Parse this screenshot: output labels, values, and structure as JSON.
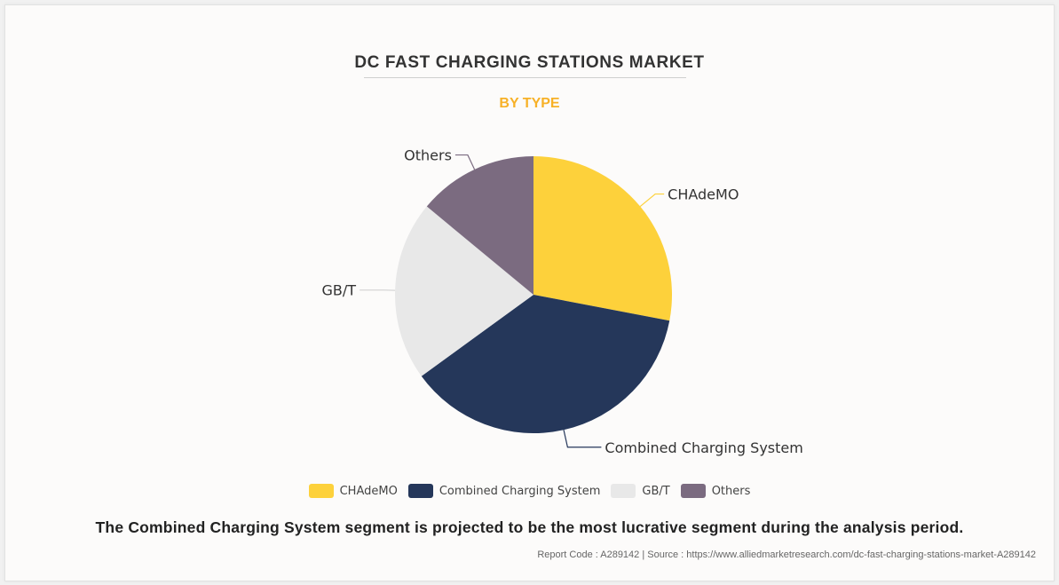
{
  "header": {
    "title": "DC FAST CHARGING STATIONS MARKET",
    "subtitle": "BY TYPE"
  },
  "colors": {
    "chademo": "#fdd13b",
    "ccs": "#25375a",
    "gbt": "#e8e8e8",
    "others": "#7b6b80",
    "subtitle": "#f7b127"
  },
  "chart_data": {
    "type": "pie",
    "title": "DC FAST CHARGING STATIONS MARKET",
    "subtitle": "BY TYPE",
    "legend_position": "bottom",
    "categories": [
      "CHAdeMO",
      "Combined Charging System",
      "GB/T",
      "Others"
    ],
    "values": [
      28,
      37,
      21,
      14
    ],
    "colors": [
      "#fdd13b",
      "#25375a",
      "#e8e8e8",
      "#7b6b80"
    ]
  },
  "legend": {
    "items": [
      {
        "label": "CHAdeMO"
      },
      {
        "label": "Combined Charging System"
      },
      {
        "label": "GB/T"
      },
      {
        "label": "Others"
      }
    ]
  },
  "footer": {
    "summary": "The Combined Charging System segment is projected to be the most lucrative segment during the analysis period.",
    "source": "Report Code : A289142  |  Source : https://www.alliedmarketresearch.com/dc-fast-charging-stations-market-A289142"
  }
}
